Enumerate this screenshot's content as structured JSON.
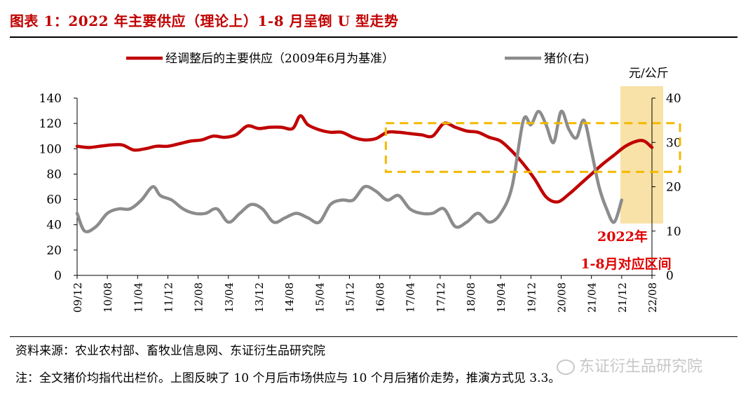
{
  "header": {
    "title": "图表 1：2022 年主要供应（理论上）1-8 月呈倒 U 型走势"
  },
  "footer": {
    "source": "资料来源：农业农村部、畜牧业信息网、东证衍生品研究院",
    "note": "注：全文猪价均指代出栏价。上图反映了 10 个月后市场供应与 10 个月后猪价走势，推演方式见 3.3。",
    "watermark": "东证衍生品研究院"
  },
  "colors": {
    "supply": "#c00000",
    "price": "#8c8c8c",
    "highlight_fill": "#f9e2a8",
    "box_dash": "#f2b900",
    "annotation": "#e00000"
  },
  "chart_data": {
    "type": "line",
    "legend": [
      {
        "label": "经调整后的主要供应（2009年6月为基准）",
        "color": "#c00000"
      },
      {
        "label": "猪价(右)",
        "color": "#8c8c8c"
      }
    ],
    "right_unit": "元/公斤",
    "y_left": {
      "min": 0,
      "max": 140,
      "ticks": [
        0,
        20,
        40,
        60,
        80,
        100,
        120,
        140
      ]
    },
    "y_right": {
      "min": 0,
      "max": 40,
      "ticks": [
        0,
        10,
        20,
        30,
        40
      ]
    },
    "x_range": [
      "2009-12",
      "2022-08"
    ],
    "x_ticks": [
      "09/12",
      "10/08",
      "11/04",
      "11/12",
      "12/08",
      "13/04",
      "13/12",
      "14/08",
      "15/04",
      "15/12",
      "16/08",
      "17/04",
      "17/12",
      "18/08",
      "19/04",
      "19/12",
      "20/08",
      "21/04",
      "21/12",
      "22/08"
    ],
    "series": [
      {
        "name": "经调整后的主要供应（2009年6月为基准）",
        "axis": "left",
        "points": [
          [
            "2009-12",
            102
          ],
          [
            "2010-03",
            101
          ],
          [
            "2010-06",
            102
          ],
          [
            "2010-09",
            103
          ],
          [
            "2010-12",
            103
          ],
          [
            "2011-03",
            99
          ],
          [
            "2011-06",
            100
          ],
          [
            "2011-09",
            102
          ],
          [
            "2011-12",
            102
          ],
          [
            "2012-03",
            104
          ],
          [
            "2012-06",
            106
          ],
          [
            "2012-09",
            107
          ],
          [
            "2012-12",
            110
          ],
          [
            "2013-03",
            109
          ],
          [
            "2013-06",
            111
          ],
          [
            "2013-09",
            118
          ],
          [
            "2013-12",
            116
          ],
          [
            "2014-03",
            117
          ],
          [
            "2014-06",
            117
          ],
          [
            "2014-09",
            116
          ],
          [
            "2014-11",
            126
          ],
          [
            "2015-01",
            119
          ],
          [
            "2015-04",
            115
          ],
          [
            "2015-07",
            113
          ],
          [
            "2015-10",
            113
          ],
          [
            "2016-01",
            109
          ],
          [
            "2016-04",
            107
          ],
          [
            "2016-07",
            108
          ],
          [
            "2016-10",
            113
          ],
          [
            "2017-01",
            113
          ],
          [
            "2017-04",
            112
          ],
          [
            "2017-07",
            111
          ],
          [
            "2017-10",
            110
          ],
          [
            "2018-01",
            120
          ],
          [
            "2018-04",
            117
          ],
          [
            "2018-07",
            114
          ],
          [
            "2018-10",
            113
          ],
          [
            "2019-01",
            109
          ],
          [
            "2019-04",
            106
          ],
          [
            "2019-07",
            98
          ],
          [
            "2019-10",
            88
          ],
          [
            "2020-01",
            76
          ],
          [
            "2020-04",
            62
          ],
          [
            "2020-07",
            58
          ],
          [
            "2020-10",
            64
          ],
          [
            "2021-01",
            72
          ],
          [
            "2021-04",
            80
          ],
          [
            "2021-07",
            88
          ],
          [
            "2021-10",
            95
          ],
          [
            "2022-01",
            102
          ],
          [
            "2022-04",
            106
          ],
          [
            "2022-06",
            106
          ],
          [
            "2022-08",
            101
          ]
        ]
      },
      {
        "name": "猪价(右)",
        "axis": "right",
        "points": [
          [
            "2009-12",
            14
          ],
          [
            "2010-02",
            10
          ],
          [
            "2010-05",
            11
          ],
          [
            "2010-08",
            14
          ],
          [
            "2010-11",
            15
          ],
          [
            "2011-02",
            15
          ],
          [
            "2011-05",
            17
          ],
          [
            "2011-08",
            20
          ],
          [
            "2011-10",
            18
          ],
          [
            "2012-01",
            17
          ],
          [
            "2012-04",
            15
          ],
          [
            "2012-07",
            14
          ],
          [
            "2012-10",
            14
          ],
          [
            "2013-01",
            15
          ],
          [
            "2013-04",
            12
          ],
          [
            "2013-07",
            14
          ],
          [
            "2013-10",
            16
          ],
          [
            "2014-01",
            15
          ],
          [
            "2014-04",
            12
          ],
          [
            "2014-07",
            13
          ],
          [
            "2014-10",
            14
          ],
          [
            "2015-01",
            13
          ],
          [
            "2015-04",
            12
          ],
          [
            "2015-07",
            16
          ],
          [
            "2015-10",
            17
          ],
          [
            "2016-01",
            17
          ],
          [
            "2016-04",
            20
          ],
          [
            "2016-07",
            19
          ],
          [
            "2016-10",
            17
          ],
          [
            "2017-01",
            18
          ],
          [
            "2017-04",
            15
          ],
          [
            "2017-07",
            14
          ],
          [
            "2017-10",
            14
          ],
          [
            "2018-01",
            15
          ],
          [
            "2018-04",
            11
          ],
          [
            "2018-07",
            12
          ],
          [
            "2018-10",
            14
          ],
          [
            "2019-01",
            12
          ],
          [
            "2019-04",
            14
          ],
          [
            "2019-07",
            20
          ],
          [
            "2019-10",
            35
          ],
          [
            "2019-12",
            34
          ],
          [
            "2020-02",
            37
          ],
          [
            "2020-04",
            34
          ],
          [
            "2020-06",
            30
          ],
          [
            "2020-08",
            37
          ],
          [
            "2020-10",
            33
          ],
          [
            "2020-12",
            31
          ],
          [
            "2021-02",
            35
          ],
          [
            "2021-04",
            28
          ],
          [
            "2021-06",
            20
          ],
          [
            "2021-08",
            15
          ],
          [
            "2021-10",
            12
          ],
          [
            "2021-12",
            17
          ]
        ]
      }
    ],
    "annotation": {
      "line1": "2022年",
      "line2": "1-8月对应区间",
      "highlight_range": [
        "2021-12",
        "2022-08"
      ],
      "box_range": [
        "2016-10",
        "2022-08"
      ],
      "box_y": [
        84,
        118
      ]
    }
  }
}
